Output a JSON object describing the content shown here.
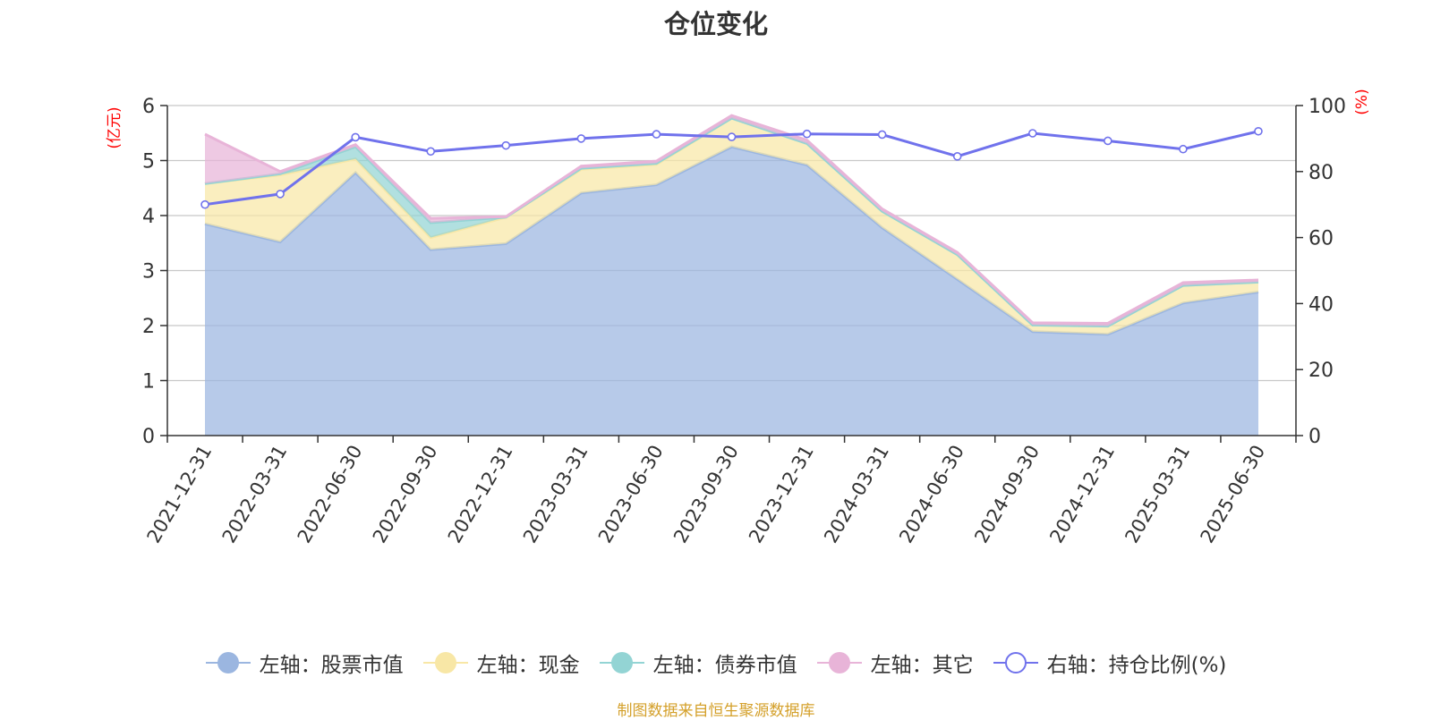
{
  "chart_data": {
    "type": "area",
    "title": "仓位变化",
    "left_axis_unit": "(亿元)",
    "right_axis_unit": "(%)",
    "categories": [
      "2021-12-31",
      "2022-03-31",
      "2022-06-30",
      "2022-09-30",
      "2022-12-31",
      "2023-03-31",
      "2023-06-30",
      "2023-09-30",
      "2023-12-31",
      "2024-03-31",
      "2024-06-30",
      "2024-09-30",
      "2024-12-31",
      "2025-03-31",
      "2025-06-30"
    ],
    "left_ylim": [
      0,
      6
    ],
    "left_ticks": [
      "0",
      "1",
      "2",
      "3",
      "4",
      "5",
      "6"
    ],
    "right_ylim": [
      0,
      100
    ],
    "right_ticks": [
      "0",
      "20",
      "40",
      "60",
      "80",
      "100"
    ],
    "grid": true,
    "stacked": true,
    "series": [
      {
        "name": "左轴：股票市值",
        "axis": "left",
        "color": "#9bb6e0",
        "values": [
          3.85,
          3.52,
          4.78,
          3.38,
          3.49,
          4.41,
          4.56,
          5.25,
          4.92,
          3.78,
          2.84,
          1.89,
          1.84,
          2.41,
          2.61
        ]
      },
      {
        "name": "左轴：现金",
        "axis": "left",
        "color": "#f8e7a6",
        "values": [
          0.73,
          1.22,
          0.25,
          0.22,
          0.48,
          0.43,
          0.37,
          0.52,
          0.39,
          0.3,
          0.45,
          0.12,
          0.15,
          0.32,
          0.18
        ]
      },
      {
        "name": "左轴：债券市值",
        "axis": "left",
        "color": "#93d4d4",
        "values": [
          0,
          0.02,
          0.22,
          0.27,
          0,
          0.02,
          0.02,
          0,
          0,
          0,
          0,
          0,
          0,
          0,
          0
        ]
      },
      {
        "name": "左轴：其它",
        "axis": "left",
        "color": "#e8b4d8",
        "values": [
          0.9,
          0.04,
          0.04,
          0.08,
          0.01,
          0.04,
          0.04,
          0.05,
          0.06,
          0.04,
          0.04,
          0.04,
          0.05,
          0.05,
          0.04
        ]
      },
      {
        "name": "右轴：持仓比例(%)",
        "axis": "right",
        "type": "line",
        "color": "#7072ec",
        "values": [
          70.0,
          73.2,
          90.4,
          86.1,
          87.9,
          90.0,
          91.3,
          90.5,
          91.4,
          91.2,
          84.6,
          91.6,
          89.3,
          86.8,
          92.2
        ]
      }
    ],
    "legend_position": "bottom"
  },
  "source_note": "制图数据来自恒生聚源数据库",
  "colors": {
    "axis_unit": "#ff0000",
    "source": "#d4a02a",
    "grid": "#c8c8c8",
    "axis": "#333333"
  }
}
